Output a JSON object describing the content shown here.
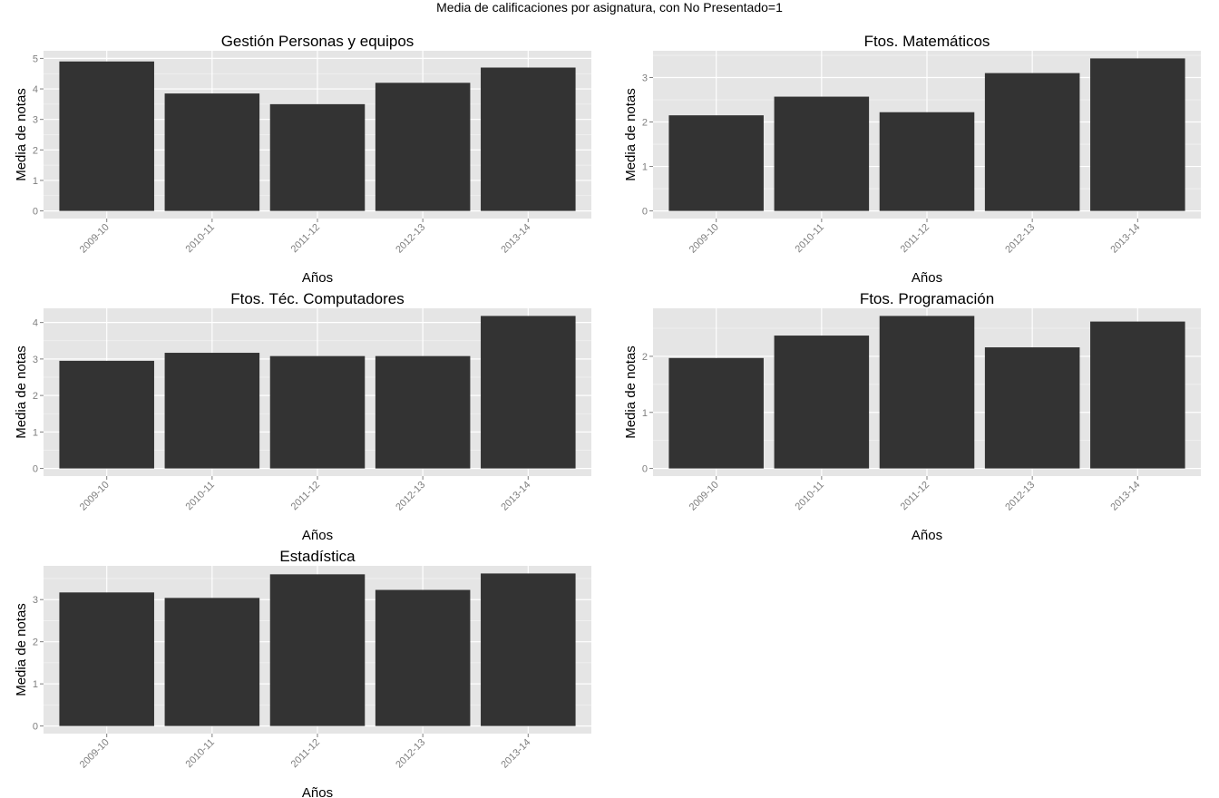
{
  "title": "Media de calificaciones por asignatura, con No Presentado=1",
  "colors": {
    "panel_background": "#e5e5e5",
    "grid_major": "#ffffff",
    "grid_minor": "#f2f2f2",
    "bar_fill": "#333333",
    "tick_text": "#7f7f7f"
  },
  "chart_data": [
    {
      "type": "bar",
      "title": "Gestión Personas y equipos",
      "xlabel": "Años",
      "ylabel": "Media de notas",
      "categories": [
        "2009-10",
        "2010-11",
        "2011-12",
        "2012-13",
        "2013-14"
      ],
      "values": [
        4.9,
        3.85,
        3.5,
        4.2,
        4.7
      ],
      "ylim": [
        0,
        5
      ],
      "yticks": [
        0,
        1,
        2,
        3,
        4,
        5
      ],
      "grid": true,
      "legend": "none"
    },
    {
      "type": "bar",
      "title": "Ftos. Matemáticos",
      "xlabel": "Años",
      "ylabel": "Media de notas",
      "categories": [
        "2009-10",
        "2010-11",
        "2011-12",
        "2012-13",
        "2013-14"
      ],
      "values": [
        2.15,
        2.57,
        2.22,
        3.1,
        3.43
      ],
      "ylim": [
        0,
        3.43
      ],
      "yticks": [
        0,
        1,
        2,
        3
      ],
      "grid": true,
      "legend": "none"
    },
    {
      "type": "bar",
      "title": "Ftos. Téc. Computadores",
      "xlabel": "Años",
      "ylabel": "Media de notas",
      "categories": [
        "2009-10",
        "2010-11",
        "2011-12",
        "2012-13",
        "2013-14"
      ],
      "values": [
        2.95,
        3.17,
        3.08,
        3.08,
        4.18
      ],
      "ylim": [
        0,
        4.18
      ],
      "yticks": [
        0,
        1,
        2,
        3,
        4
      ],
      "grid": true,
      "legend": "none"
    },
    {
      "type": "bar",
      "title": "Ftos. Programación",
      "xlabel": "Años",
      "ylabel": "Media de notas",
      "categories": [
        "2009-10",
        "2010-11",
        "2011-12",
        "2012-13",
        "2013-14"
      ],
      "values": [
        1.97,
        2.37,
        2.72,
        2.16,
        2.62
      ],
      "ylim": [
        0,
        2.72
      ],
      "yticks": [
        0,
        1,
        2
      ],
      "grid": true,
      "legend": "none"
    },
    {
      "type": "bar",
      "title": "Estadística",
      "xlabel": "Años",
      "ylabel": "Media de notas",
      "categories": [
        "2009-10",
        "2010-11",
        "2011-12",
        "2012-13",
        "2013-14"
      ],
      "values": [
        3.17,
        3.04,
        3.6,
        3.23,
        3.62
      ],
      "ylim": [
        0,
        3.62
      ],
      "yticks": [
        0,
        1,
        2,
        3
      ],
      "grid": true,
      "legend": "none"
    }
  ]
}
